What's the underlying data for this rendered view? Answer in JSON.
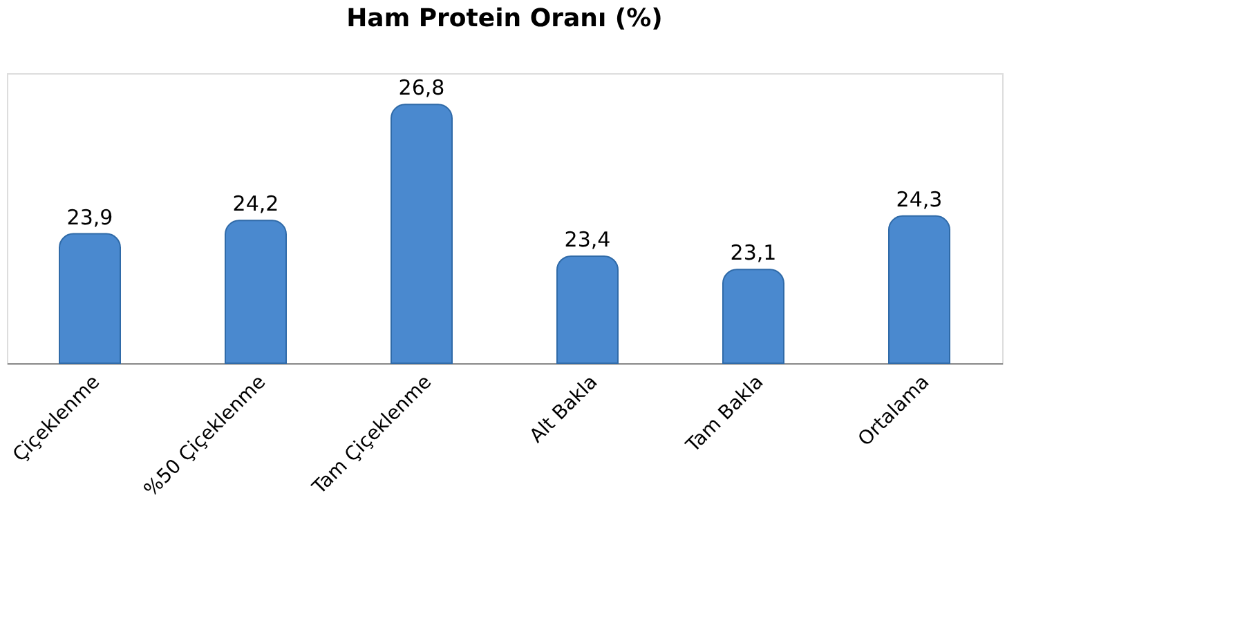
{
  "chart_data": {
    "type": "bar",
    "title": "Ham Protein Oranı (%)",
    "categories": [
      "Çiçeklenme",
      "%50 Çiçeklenme",
      "Tam Çiçeklenme",
      "Alt Bakla",
      "Tam Bakla",
      "Ortalama"
    ],
    "values": [
      23.9,
      24.2,
      26.8,
      23.4,
      23.1,
      24.3
    ],
    "value_labels": [
      "23,9",
      "24,2",
      "26,8",
      "23,4",
      "23,1",
      "24,3"
    ],
    "color": "#4a89cf",
    "ylim": [
      21,
      27.5
    ],
    "tick_labels": "x",
    "grid": false
  }
}
